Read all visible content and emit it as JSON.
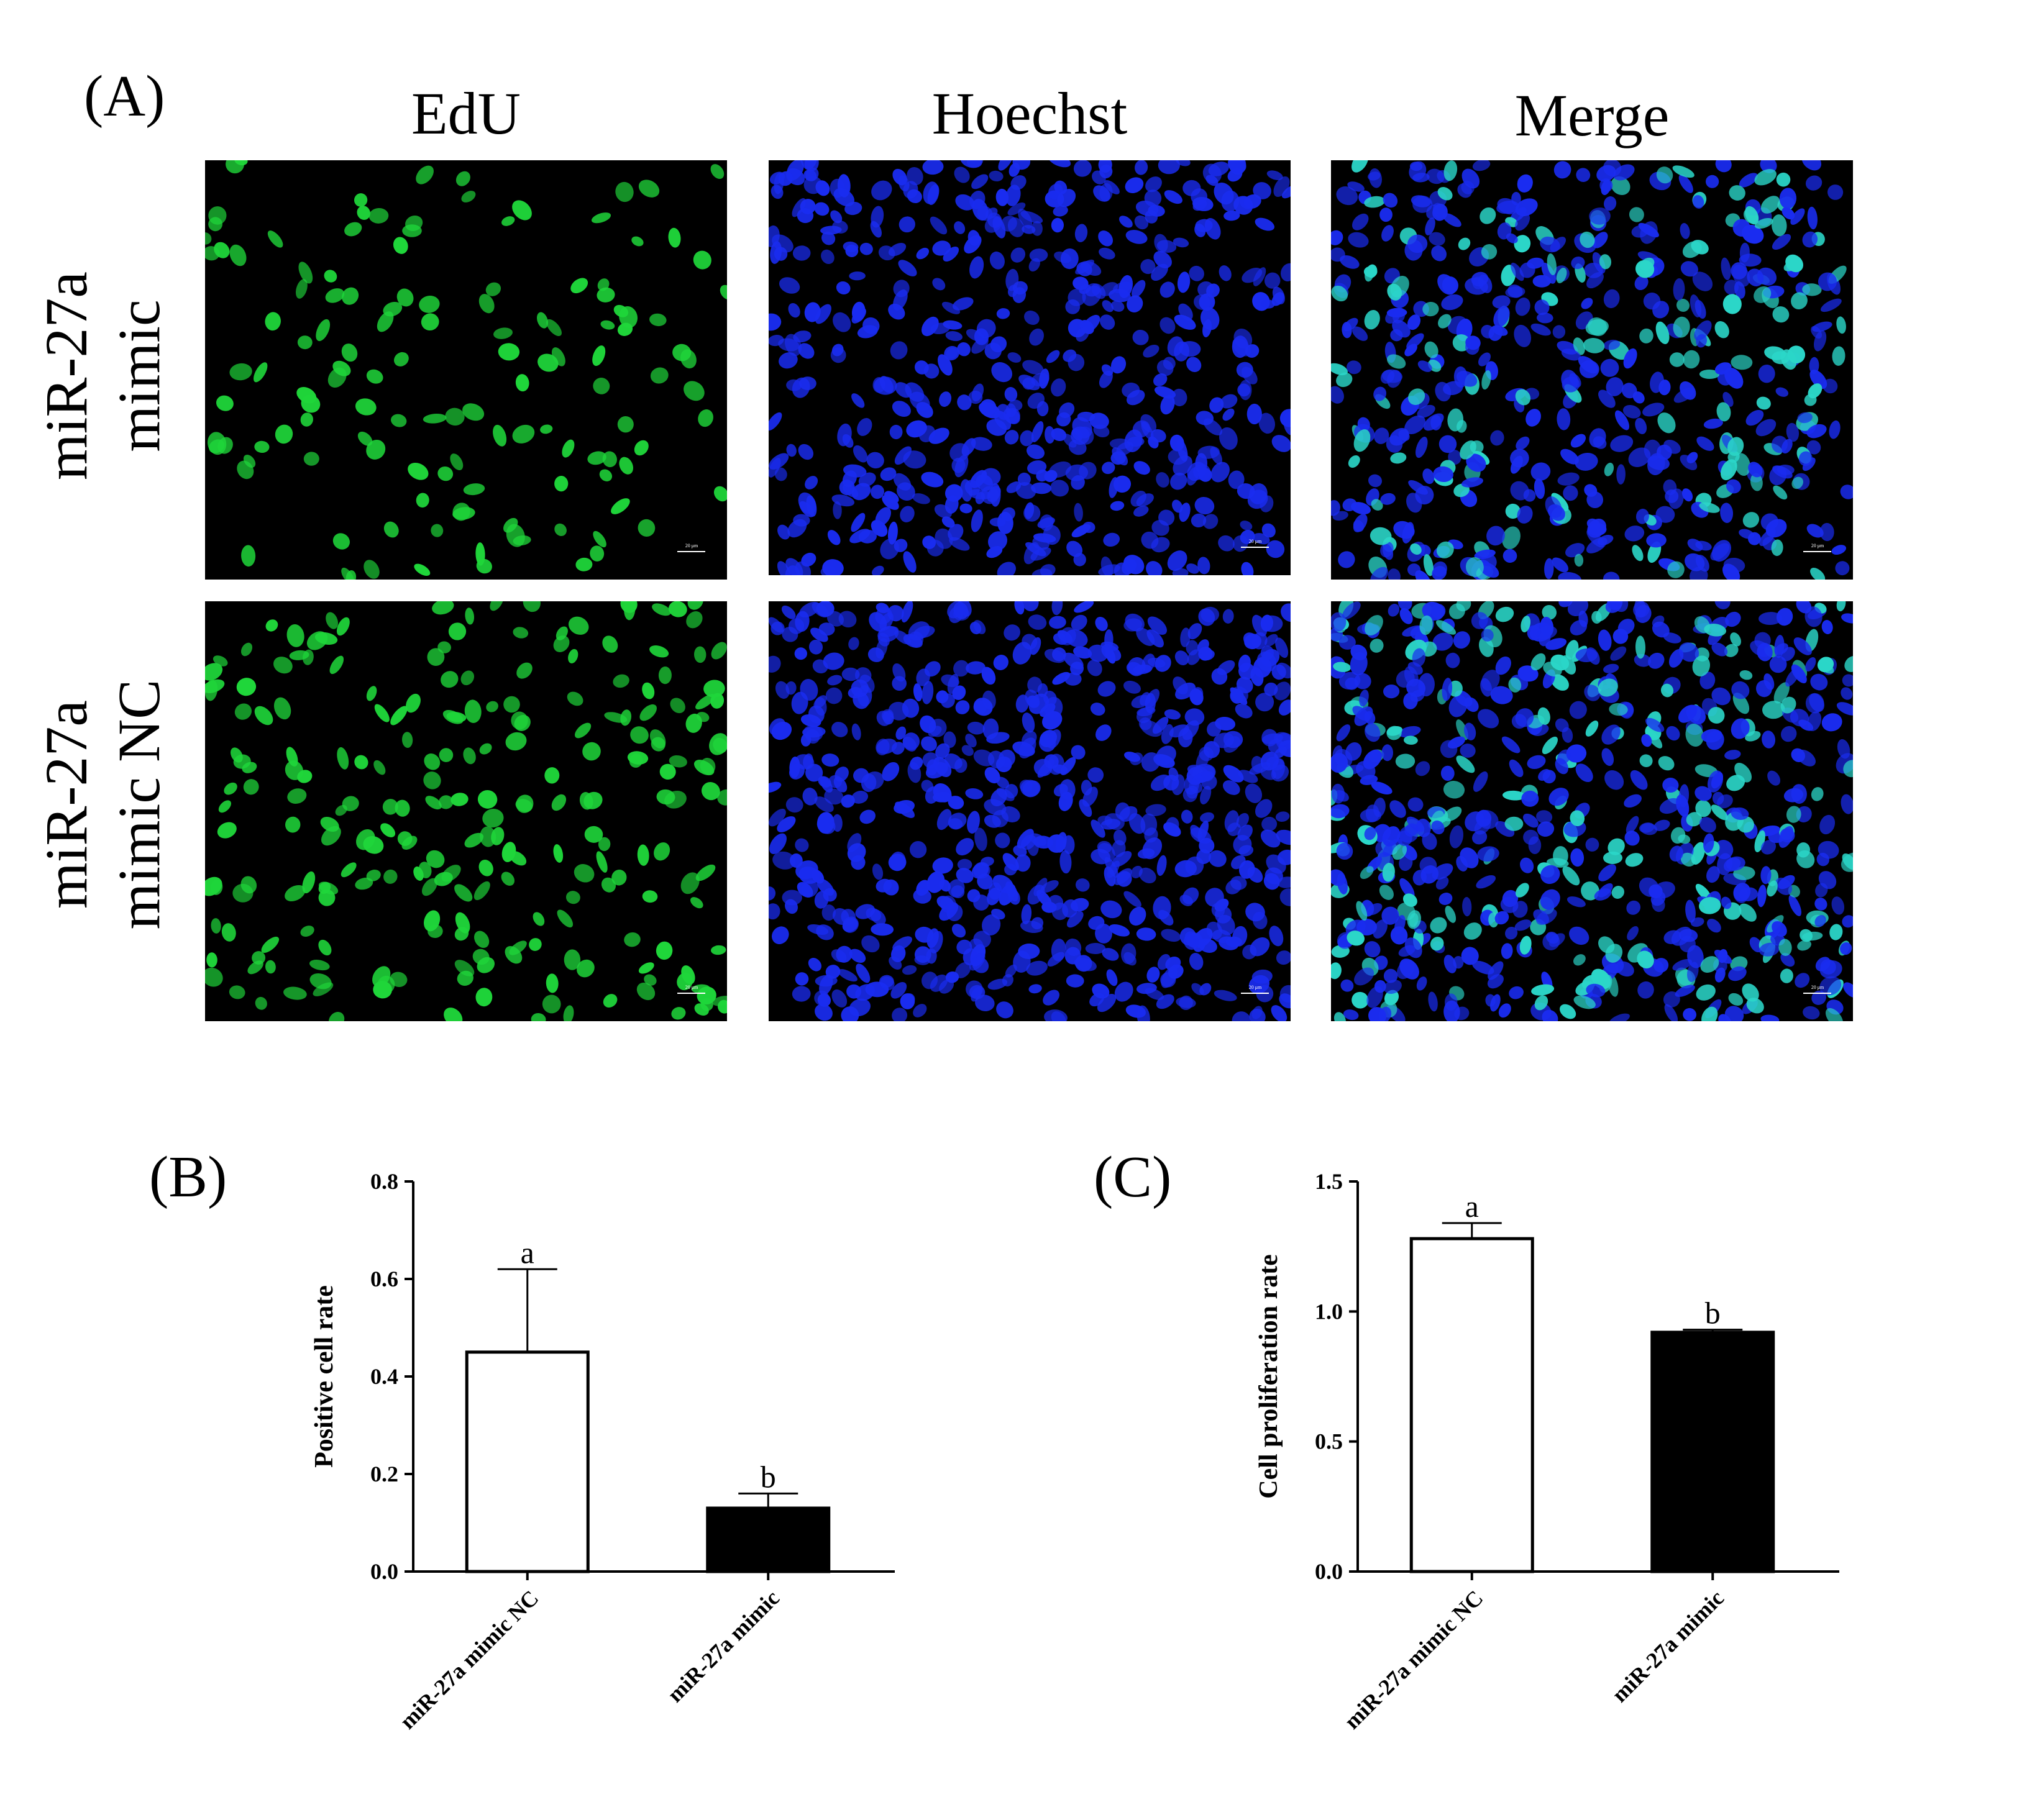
{
  "panel_a": {
    "label": "(A)",
    "columns": [
      "EdU",
      "Hoechst",
      "Merge"
    ],
    "rows": [
      {
        "line1": "miR-27a",
        "line2": "mimic"
      },
      {
        "line1": "miR-27a",
        "line2": "mimic NC"
      }
    ],
    "scale_bar_text": "20 μm",
    "colors": {
      "edu": "#1fd63a",
      "hoechst": "#1a2cf0",
      "merge_positive": "#2bd6c8",
      "background": "#000000"
    }
  },
  "panel_b": {
    "label": "(B)"
  },
  "panel_c": {
    "label": "(C)"
  },
  "chart_data": [
    {
      "type": "bar",
      "categories": [
        "miR-27a mimic NC",
        "miR-27a mimic"
      ],
      "values": [
        0.45,
        0.13
      ],
      "errors": [
        0.17,
        0.03
      ],
      "significance": [
        "a",
        "b"
      ],
      "bar_colors": [
        "#ffffff",
        "#000000"
      ],
      "title": "",
      "xlabel": "",
      "ylabel": "Positive cell rate",
      "ylim": [
        0,
        0.8
      ],
      "yticks": [
        0.0,
        0.2,
        0.4,
        0.6,
        0.8
      ],
      "ytick_labels": [
        "0.0",
        "0.2",
        "0.4",
        "0.6",
        "0.8"
      ]
    },
    {
      "type": "bar",
      "categories": [
        "miR-27a mimic NC",
        "miR-27a mimic"
      ],
      "values": [
        1.28,
        0.92
      ],
      "errors": [
        0.06,
        0.01
      ],
      "significance": [
        "a",
        "b"
      ],
      "bar_colors": [
        "#ffffff",
        "#000000"
      ],
      "title": "",
      "xlabel": "",
      "ylabel": "Cell proliferation rate",
      "ylim": [
        0,
        1.5
      ],
      "yticks": [
        0.0,
        0.5,
        1.0,
        1.5
      ],
      "ytick_labels": [
        "0.0",
        "0.5",
        "1.0",
        "1.5"
      ]
    }
  ]
}
